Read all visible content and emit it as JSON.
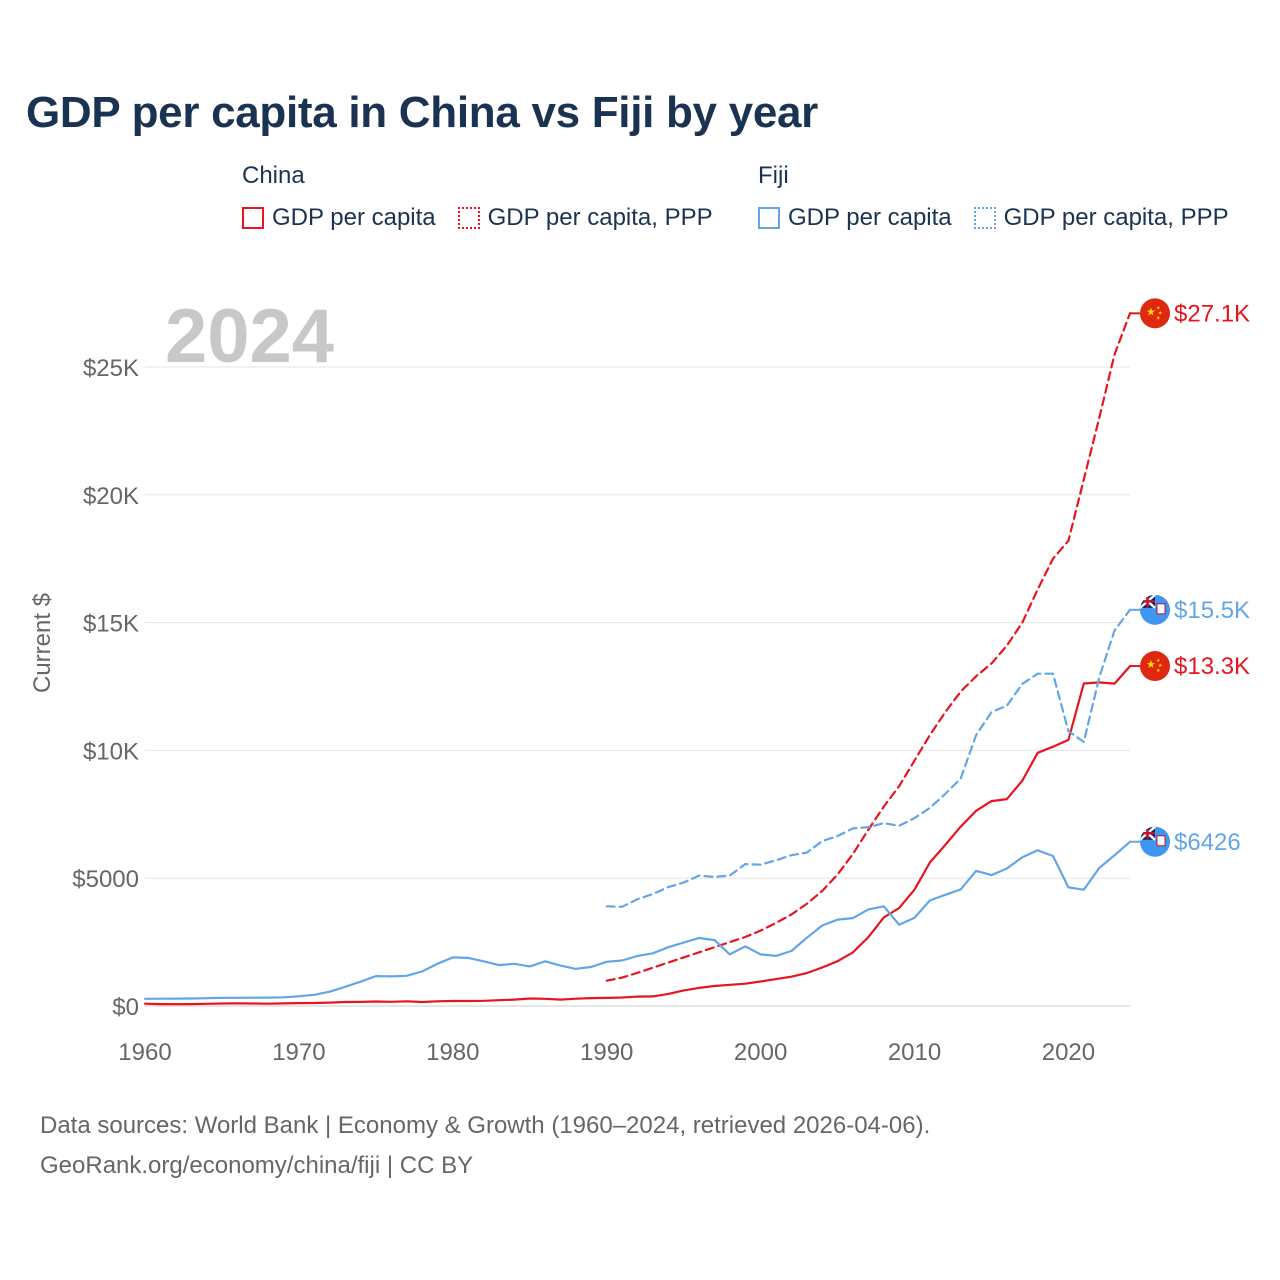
{
  "title": "GDP per capita in China vs Fiji by year",
  "legend": {
    "groups": [
      {
        "name": "China",
        "items": [
          {
            "label": "GDP per capita",
            "color": "#e8141e",
            "style": "solid"
          },
          {
            "label": "GDP per capita, PPP",
            "color": "#e8141e",
            "style": "dotted"
          }
        ]
      },
      {
        "name": "Fiji",
        "items": [
          {
            "label": "GDP per capita",
            "color": "#63a6e6",
            "style": "solid"
          },
          {
            "label": "GDP per capita, PPP",
            "color": "#63a6e6",
            "style": "dotted"
          }
        ]
      }
    ]
  },
  "year_display": "2024",
  "sources": {
    "line1": "Data sources: World Bank | Economy & Growth (1960–2024, retrieved 2026-04-06).",
    "line2": "GeoRank.org/economy/china/fiji | CC BY"
  },
  "chart_data": {
    "type": "line",
    "title": "GDP per capita in China vs Fiji by year",
    "xlabel": "",
    "ylabel": "Current $",
    "xlim": [
      1960,
      2024
    ],
    "ylim": [
      0,
      27500
    ],
    "x_ticks": [
      1960,
      1970,
      1980,
      1990,
      2000,
      2010,
      2020
    ],
    "x_tick_labels": [
      "1960",
      "1970",
      "1980",
      "1990",
      "2000",
      "2010",
      "2020"
    ],
    "y_ticks": [
      0,
      5000,
      10000,
      15000,
      20000,
      25000
    ],
    "y_tick_labels": [
      "$0",
      "$5000",
      "$10K",
      "$15K",
      "$20K",
      "$25K"
    ],
    "grid": true,
    "series": [
      {
        "name": "China GDP per capita",
        "country": "China",
        "color": "#e8141e",
        "dash": "solid",
        "end_label": "$13.3K",
        "flag": "china",
        "x": [
          1960,
          1961,
          1962,
          1963,
          1964,
          1965,
          1966,
          1967,
          1968,
          1969,
          1970,
          1971,
          1972,
          1973,
          1974,
          1975,
          1976,
          1977,
          1978,
          1979,
          1980,
          1981,
          1982,
          1983,
          1984,
          1985,
          1986,
          1987,
          1988,
          1989,
          1990,
          1991,
          1992,
          1993,
          1994,
          1995,
          1996,
          1997,
          1998,
          1999,
          2000,
          2001,
          2002,
          2003,
          2004,
          2005,
          2006,
          2007,
          2008,
          2009,
          2010,
          2011,
          2012,
          2013,
          2014,
          2015,
          2016,
          2017,
          2018,
          2019,
          2020,
          2021,
          2022,
          2023,
          2024
        ],
        "y": [
          90,
          76,
          71,
          75,
          85,
          98,
          104,
          97,
          91,
          100,
          113,
          119,
          132,
          157,
          160,
          178,
          165,
          185,
          156,
          184,
          195,
          197,
          203,
          225,
          250,
          294,
          282,
          252,
          284,
          310,
          318,
          333,
          366,
          377,
          474,
          610,
          709,
          782,
          829,
          873,
          959,
          1053,
          1148,
          1288,
          1508,
          1753,
          2099,
          2694,
          3468,
          3832,
          4550,
          5614,
          6301,
          7020,
          7636,
          8016,
          8094,
          8817,
          9905,
          10144,
          10409,
          12618,
          12662,
          12615,
          13300
        ]
      },
      {
        "name": "China GDP per capita, PPP",
        "country": "China",
        "color": "#e8141e",
        "dash": "dashed",
        "end_label": "$27.1K",
        "flag": "china",
        "x": [
          1990,
          1991,
          1992,
          1993,
          1994,
          1995,
          1996,
          1997,
          1998,
          1999,
          2000,
          2001,
          2002,
          2003,
          2004,
          2005,
          2006,
          2007,
          2008,
          2009,
          2010,
          2011,
          2012,
          2013,
          2014,
          2015,
          2016,
          2017,
          2018,
          2019,
          2020,
          2021,
          2022,
          2023,
          2024
        ],
        "y": [
          990,
          1110,
          1300,
          1500,
          1700,
          1900,
          2100,
          2300,
          2500,
          2700,
          2950,
          3250,
          3580,
          4000,
          4500,
          5150,
          5950,
          6900,
          7800,
          8600,
          9600,
          10600,
          11500,
          12300,
          12900,
          13400,
          14100,
          15000,
          16300,
          17500,
          18200,
          20600,
          23000,
          25500,
          27100
        ]
      },
      {
        "name": "Fiji GDP per capita",
        "country": "Fiji",
        "color": "#63a6e6",
        "dash": "solid",
        "end_label": "$6426",
        "flag": "fiji",
        "x": [
          1960,
          1961,
          1962,
          1963,
          1964,
          1965,
          1966,
          1967,
          1968,
          1969,
          1970,
          1971,
          1972,
          1973,
          1974,
          1975,
          1976,
          1977,
          1978,
          1979,
          1980,
          1981,
          1982,
          1983,
          1984,
          1985,
          1986,
          1987,
          1988,
          1989,
          1990,
          1991,
          1992,
          1993,
          1994,
          1995,
          1996,
          1997,
          1998,
          1999,
          2000,
          2001,
          2002,
          2003,
          2004,
          2005,
          2006,
          2007,
          2008,
          2009,
          2010,
          2011,
          2012,
          2013,
          2014,
          2015,
          2016,
          2017,
          2018,
          2019,
          2020,
          2021,
          2022,
          2023,
          2024
        ],
        "y": [
          280,
          285,
          290,
          295,
          305,
          315,
          320,
          325,
          330,
          340,
          380,
          440,
          560,
          750,
          950,
          1170,
          1160,
          1180,
          1350,
          1650,
          1900,
          1880,
          1750,
          1600,
          1650,
          1550,
          1750,
          1580,
          1450,
          1530,
          1730,
          1780,
          1960,
          2060,
          2300,
          2480,
          2660,
          2580,
          2020,
          2330,
          2020,
          1960,
          2150,
          2670,
          3150,
          3380,
          3440,
          3780,
          3900,
          3180,
          3450,
          4130,
          4350,
          4560,
          5290,
          5120,
          5380,
          5820,
          6090,
          5870,
          4640,
          4550,
          5400,
          5900,
          6426
        ]
      },
      {
        "name": "Fiji GDP per capita, PPP",
        "country": "Fiji",
        "color": "#63a6e6",
        "dash": "dashed",
        "end_label": "$15.5K",
        "flag": "fiji",
        "x": [
          1990,
          1991,
          1992,
          1993,
          1994,
          1995,
          1996,
          1997,
          1998,
          1999,
          2000,
          2001,
          2002,
          2003,
          2004,
          2005,
          2006,
          2007,
          2008,
          2009,
          2010,
          2011,
          2012,
          2013,
          2014,
          2015,
          2016,
          2017,
          2018,
          2019,
          2020,
          2021,
          2022,
          2023,
          2024
        ],
        "y": [
          3900,
          3880,
          4180,
          4380,
          4650,
          4830,
          5100,
          5050,
          5100,
          5550,
          5530,
          5700,
          5900,
          6000,
          6450,
          6650,
          6950,
          7000,
          7150,
          7050,
          7350,
          7750,
          8300,
          8900,
          10600,
          11500,
          11750,
          12600,
          13000,
          13000,
          10750,
          10330,
          12850,
          14700,
          15500
        ]
      }
    ]
  }
}
